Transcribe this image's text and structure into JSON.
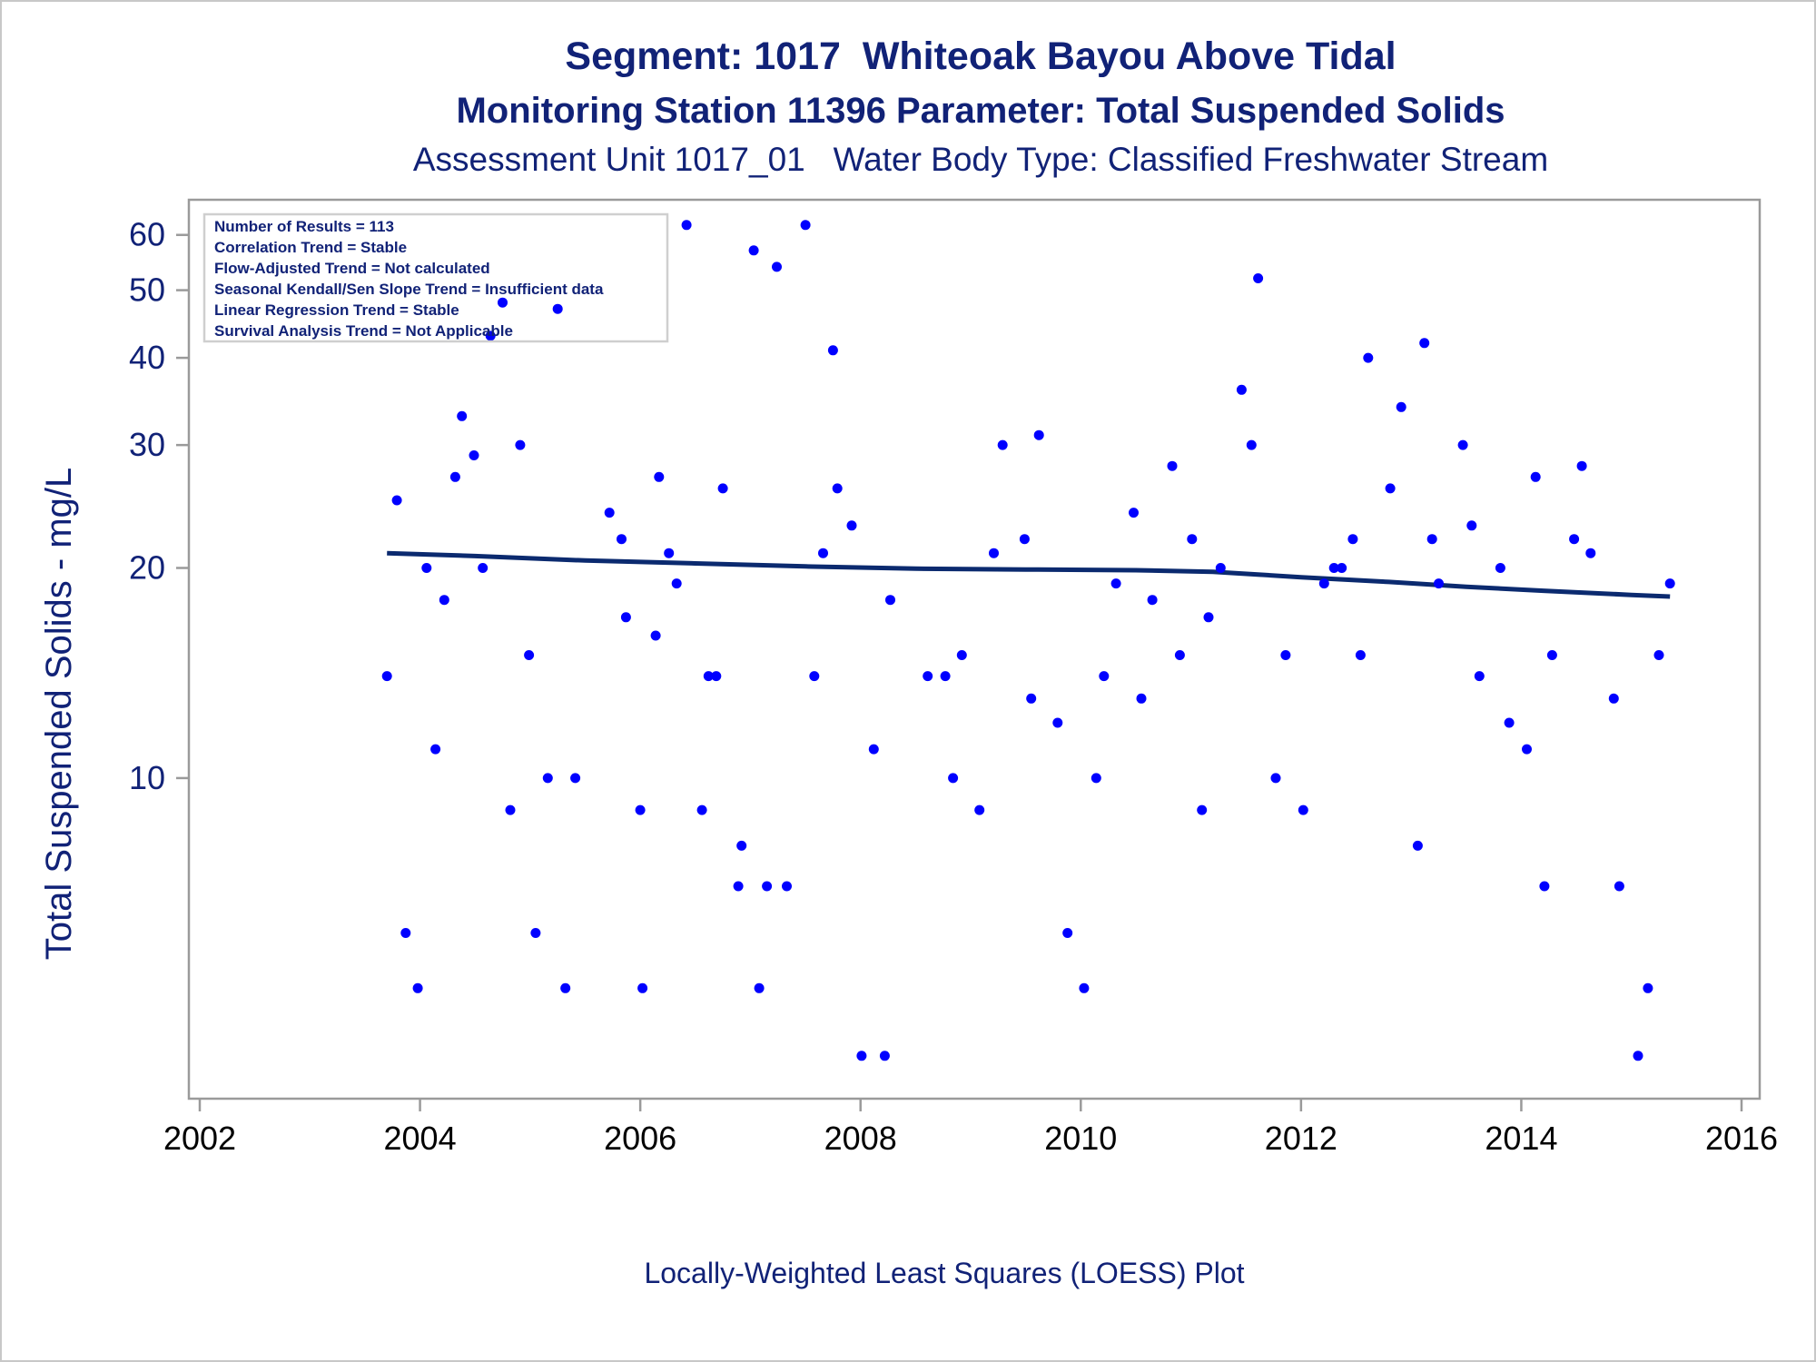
{
  "chart_data": {
    "type": "scatter",
    "title": "Segment: 1017  Whiteoak Bayou Above Tidal",
    "subtitle": "Monitoring Station 11396 Parameter: Total Suspended Solids",
    "subtitle2": "Assessment Unit 1017_01   Water Body Type: Classified Freshwater Stream",
    "ylabel": "Total Suspended Solids - mg/L",
    "xlabel": "",
    "footnote": "Locally-Weighted Least Squares (LOESS) Plot",
    "yscale": "log",
    "xlim": [
      2002,
      2016
    ],
    "ylim": [
      3.6,
      65
    ],
    "xticks": [
      2002,
      2004,
      2006,
      2008,
      2010,
      2012,
      2014,
      2016
    ],
    "yticks": [
      10,
      20,
      30,
      40,
      50,
      60
    ],
    "grid": false,
    "legend": {
      "placement": "top-left",
      "lines": [
        "Number of Results = 113",
        "Correlation Trend = Stable",
        "Flow-Adjusted Trend = Not calculated",
        "Seasonal Kendall/Sen Slope Trend = Insufficient data",
        "Linear Regression Trend = Stable",
        "Survival Analysis Trend = Not Applicable"
      ]
    },
    "colors": {
      "points": "#0000ff",
      "trend": "#0b2a6f",
      "text": "#112277",
      "axis": "#9a9a9a"
    },
    "series": [
      {
        "kind": "points",
        "x": [
          2003.7,
          2003.79,
          2003.87,
          2003.98,
          2004.06,
          2004.14,
          2004.22,
          2004.32,
          2004.38,
          2004.49,
          2004.57,
          2004.64,
          2004.75,
          2004.82,
          2004.91,
          2004.99,
          2005.05,
          2005.16,
          2005.25,
          2005.32,
          2005.41,
          2005.72,
          2005.83,
          2005.87,
          2006.0,
          2006.02,
          2006.14,
          2006.17,
          2006.26,
          2006.33,
          2006.42,
          2006.56,
          2006.62,
          2006.69,
          2006.75,
          2006.89,
          2006.92,
          2007.03,
          2007.08,
          2007.15,
          2007.24,
          2007.33,
          2007.5,
          2007.58,
          2007.66,
          2007.75,
          2007.79,
          2007.92,
          2008.01,
          2008.12,
          2008.22,
          2008.27,
          2008.61,
          2008.77,
          2008.84,
          2008.92,
          2009.08,
          2009.21,
          2009.29,
          2009.49,
          2009.55,
          2009.62,
          2009.79,
          2009.88,
          2010.03,
          2010.14,
          2010.21,
          2010.32,
          2010.48,
          2010.55,
          2010.65,
          2010.83,
          2010.9,
          2011.01,
          2011.1,
          2011.16,
          2011.27,
          2011.46,
          2011.55,
          2011.61,
          2011.77,
          2011.86,
          2012.02,
          2012.21,
          2012.3,
          2012.37,
          2012.47,
          2012.54,
          2012.61,
          2012.81,
          2012.91,
          2013.06,
          2013.12,
          2013.19,
          2013.25,
          2013.47,
          2013.55,
          2013.62,
          2013.81,
          2013.89,
          2014.05,
          2014.13,
          2014.21,
          2014.28,
          2014.48,
          2014.55,
          2014.63,
          2014.84,
          2014.89,
          2015.06,
          2015.15,
          2015.25,
          2015.35
        ],
        "y": [
          14,
          25,
          6,
          5,
          20,
          11,
          18,
          27,
          33,
          29,
          20,
          43,
          48,
          9,
          30,
          15,
          6,
          10,
          47,
          5,
          10,
          24,
          22,
          17,
          9,
          5,
          16,
          27,
          21,
          19,
          62,
          9,
          14,
          14,
          26,
          7,
          8,
          57,
          5,
          7,
          54,
          7,
          62,
          14,
          21,
          41,
          26,
          23,
          4,
          11,
          4,
          18,
          14,
          14,
          10,
          15,
          9,
          21,
          30,
          22,
          13,
          31,
          12,
          6,
          5,
          10,
          14,
          19,
          24,
          13,
          18,
          28,
          15,
          22,
          9,
          17,
          20,
          36,
          30,
          52,
          10,
          15,
          9,
          19,
          20,
          20,
          22,
          15,
          40,
          26,
          34,
          8,
          42,
          22,
          19,
          30,
          23,
          14,
          20,
          12,
          11,
          27,
          7,
          15,
          22,
          28,
          21,
          13,
          7,
          4,
          5,
          15,
          19
        ]
      },
      {
        "kind": "loess",
        "x": [
          2003.7,
          2004.5,
          2005.5,
          2006.5,
          2007.5,
          2008.5,
          2009.5,
          2010.5,
          2011.2,
          2012.0,
          2012.8,
          2013.5,
          2014.2,
          2015.0,
          2015.35
        ],
        "y": [
          21.0,
          20.8,
          20.5,
          20.3,
          20.1,
          19.95,
          19.9,
          19.85,
          19.75,
          19.4,
          19.1,
          18.8,
          18.55,
          18.3,
          18.2
        ]
      }
    ]
  }
}
